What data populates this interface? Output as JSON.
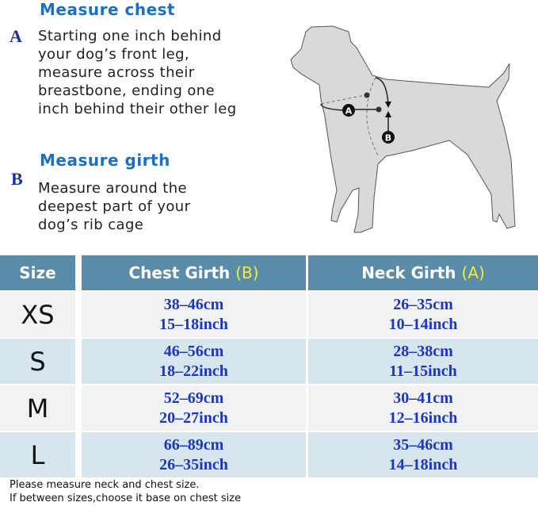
{
  "instructions": {
    "chest": {
      "letter": "A",
      "title": "Measure chest",
      "lines": [
        "Starting one inch behind",
        "your dog’s front leg,",
        "measure across their",
        "breastbone, ending one",
        "inch behind their other leg"
      ]
    },
    "girth": {
      "letter": "B",
      "title": "Measure girth",
      "lines": [
        "Measure around the",
        "deepest part of your",
        "dog’s rib cage"
      ]
    }
  },
  "diagram": {
    "label_a": "A",
    "label_b": "B"
  },
  "table": {
    "headers": {
      "size": "Size",
      "chest": "Chest Girth ",
      "chest_tag": "(B)",
      "neck": "Neck Girth ",
      "neck_tag": "(A)"
    },
    "rows": [
      {
        "size": "XS",
        "chest_cm": "38–46cm",
        "chest_in": "15–18inch",
        "neck_cm": "26–35cm",
        "neck_in": "10–14inch"
      },
      {
        "size": "S",
        "chest_cm": "46–56cm",
        "chest_in": "18–22inch",
        "neck_cm": "28–38cm",
        "neck_in": "11–15inch"
      },
      {
        "size": "M",
        "chest_cm": "52–69cm",
        "chest_in": "20–27inch",
        "neck_cm": "30–41cm",
        "neck_in": "12–16inch"
      },
      {
        "size": "L",
        "chest_cm": "66–89cm",
        "chest_in": "26–35inch",
        "neck_cm": "35–46cm",
        "neck_in": "14–18inch"
      }
    ]
  },
  "notes": [
    "Please measure neck and chest size.",
    "If between sizes,choose it base on chest size"
  ],
  "colors": {
    "heading": "#1d6fc0",
    "header_bg": "#5a8caa",
    "tag": "#f3ec3a",
    "value": "#1b36c4",
    "row_alt": "#d6e5ee"
  }
}
